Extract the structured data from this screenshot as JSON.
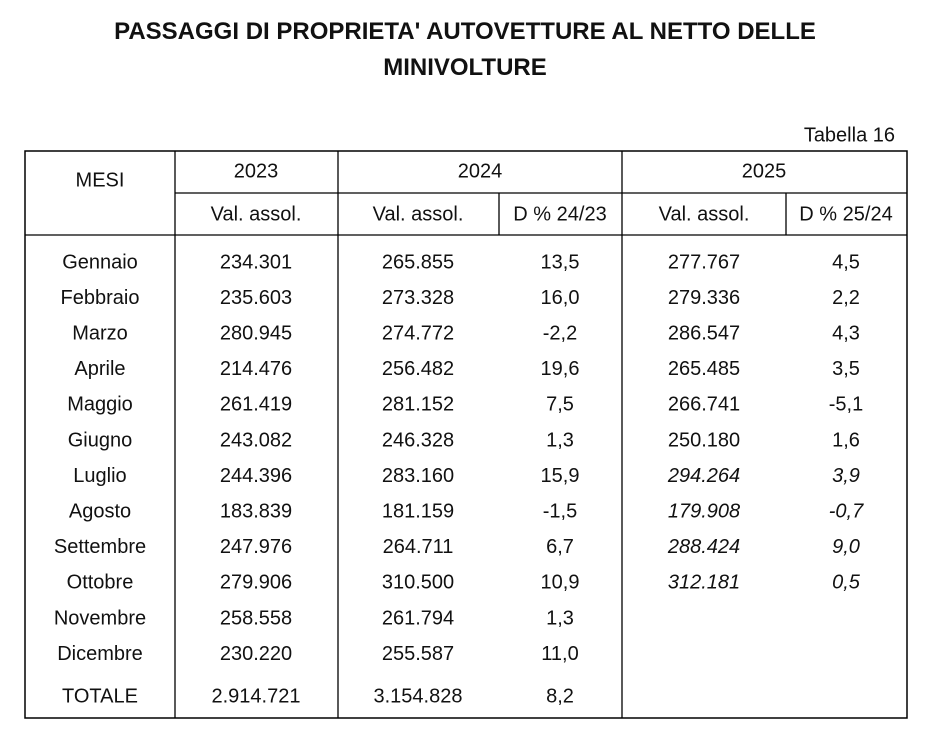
{
  "header": {
    "title": "PASSAGGI DI PROPRIETA' AUTOVETTURE AL NETTO DELLE MINIVOLTURE",
    "table_label": "Tabella 16"
  },
  "table": {
    "columns_top": [
      "MESI",
      "2023",
      "2024",
      "2025"
    ],
    "columns_sub": [
      "Val. assol.",
      "Val. assol.",
      "D % 24/23",
      "Val. assol.",
      "D % 25/24"
    ],
    "rows": [
      [
        "Gennaio",
        "234.301",
        "265.855",
        "13,5",
        "277.767",
        "4,5"
      ],
      [
        "Febbraio",
        "235.603",
        "273.328",
        "16,0",
        "279.336",
        "2,2"
      ],
      [
        "Marzo",
        "280.945",
        "274.772",
        "-2,2",
        "286.547",
        "4,3"
      ],
      [
        "Aprile",
        "214.476",
        "256.482",
        "19,6",
        "265.485",
        "3,5"
      ],
      [
        "Maggio",
        "261.419",
        "281.152",
        "7,5",
        "266.741",
        "-5,1"
      ],
      [
        "Giugno",
        "243.082",
        "246.328",
        "1,3",
        "250.180",
        "1,6"
      ],
      [
        "Luglio",
        "244.396",
        "283.160",
        "15,9",
        "294.264",
        "3,9"
      ],
      [
        "Agosto",
        "183.839",
        "181.159",
        "-1,5",
        "179.908",
        "-0,7"
      ],
      [
        "Settembre",
        "247.976",
        "264.711",
        "6,7",
        "288.424",
        "9,0"
      ],
      [
        "Ottobre",
        "279.906",
        "310.500",
        "10,9",
        "312.181",
        "0,5"
      ],
      [
        "Novembre",
        "258.558",
        "261.794",
        "1,3",
        null,
        null
      ],
      [
        "Dicembre",
        "230.220",
        "255.587",
        "11,0",
        null,
        null
      ],
      [
        "TOTALE",
        "2.914.721",
        "3.154.828",
        "8,2",
        null,
        null
      ]
    ]
  }
}
